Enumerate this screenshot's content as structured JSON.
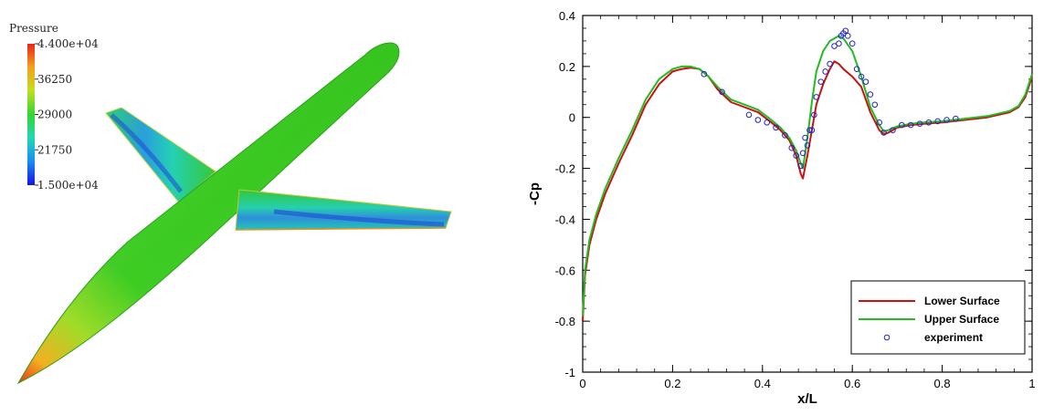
{
  "rendering": {
    "colorbar": {
      "title": "Pressure",
      "ticks": [
        "4.400e+04",
        "36250",
        "29000",
        "21750",
        "1.500e+04"
      ],
      "min": 15000,
      "max": 44000,
      "colors": [
        "#e8251a",
        "#f4a21c",
        "#bfe020",
        "#35d530",
        "#22d6b8",
        "#1a8cf0",
        "#1414e6"
      ]
    },
    "model_color": "#35c01c"
  },
  "chart_data": {
    "type": "line",
    "xlabel": "x/L",
    "ylabel": "-Cp",
    "xlim": [
      0,
      1
    ],
    "ylim": [
      -1,
      0.4
    ],
    "xticks": [
      0,
      0.2,
      0.4,
      0.6,
      0.8,
      1
    ],
    "xtick_labels": [
      "0",
      "0.2",
      "0.4",
      "0.6",
      "0.8",
      "1"
    ],
    "yticks": [
      -1,
      -0.8,
      -0.6,
      -0.4,
      -0.2,
      0,
      0.2,
      0.4
    ],
    "ytick_labels": [
      "-1",
      "-0.8",
      "-0.6",
      "-0.4",
      "-0.2",
      "0",
      "0.2",
      "0.4"
    ],
    "grid": false,
    "legend_position": "bottom-right",
    "series": [
      {
        "name": "Lower Surface",
        "color": "#cc1111",
        "style": "line",
        "x": [
          0,
          0.005,
          0.015,
          0.03,
          0.05,
          0.08,
          0.11,
          0.14,
          0.17,
          0.2,
          0.22,
          0.24,
          0.26,
          0.28,
          0.3,
          0.33,
          0.36,
          0.39,
          0.42,
          0.44,
          0.46,
          0.475,
          0.485,
          0.49,
          0.5,
          0.51,
          0.52,
          0.535,
          0.55,
          0.56,
          0.57,
          0.58,
          0.6,
          0.62,
          0.64,
          0.66,
          0.67,
          0.68,
          0.7,
          0.73,
          0.76,
          0.8,
          0.85,
          0.9,
          0.95,
          0.97,
          0.985,
          1.0
        ],
        "y": [
          -0.8,
          -0.62,
          -0.5,
          -0.4,
          -0.3,
          -0.18,
          -0.07,
          0.05,
          0.13,
          0.18,
          0.19,
          0.195,
          0.19,
          0.16,
          0.11,
          0.06,
          0.04,
          0.02,
          -0.02,
          -0.05,
          -0.09,
          -0.15,
          -0.22,
          -0.24,
          -0.15,
          -0.05,
          0.05,
          0.13,
          0.19,
          0.22,
          0.21,
          0.19,
          0.16,
          0.12,
          0.02,
          -0.05,
          -0.065,
          -0.06,
          -0.04,
          -0.03,
          -0.025,
          -0.02,
          -0.01,
          0.0,
          0.02,
          0.04,
          0.08,
          0.16
        ]
      },
      {
        "name": "Upper Surface",
        "color": "#22bb22",
        "style": "line",
        "x": [
          0,
          0.005,
          0.015,
          0.03,
          0.05,
          0.08,
          0.11,
          0.14,
          0.17,
          0.2,
          0.22,
          0.24,
          0.26,
          0.28,
          0.3,
          0.33,
          0.36,
          0.39,
          0.42,
          0.44,
          0.46,
          0.475,
          0.485,
          0.49,
          0.5,
          0.51,
          0.52,
          0.535,
          0.55,
          0.56,
          0.57,
          0.58,
          0.6,
          0.62,
          0.64,
          0.66,
          0.67,
          0.68,
          0.7,
          0.73,
          0.76,
          0.8,
          0.85,
          0.9,
          0.95,
          0.97,
          0.985,
          1.0
        ],
        "y": [
          -0.78,
          -0.6,
          -0.48,
          -0.38,
          -0.28,
          -0.16,
          -0.05,
          0.07,
          0.15,
          0.19,
          0.2,
          0.2,
          0.19,
          0.16,
          0.12,
          0.07,
          0.05,
          0.03,
          -0.01,
          -0.04,
          -0.08,
          -0.13,
          -0.18,
          -0.2,
          -0.08,
          0.06,
          0.18,
          0.26,
          0.3,
          0.31,
          0.32,
          0.31,
          0.26,
          0.16,
          0.04,
          -0.03,
          -0.055,
          -0.05,
          -0.035,
          -0.025,
          -0.02,
          -0.015,
          -0.005,
          0.005,
          0.025,
          0.045,
          0.09,
          0.17
        ]
      },
      {
        "name": "experiment",
        "color": "#2222cc",
        "style": "markers",
        "x": [
          0.27,
          0.31,
          0.37,
          0.39,
          0.41,
          0.43,
          0.45,
          0.465,
          0.475,
          0.485,
          0.49,
          0.495,
          0.5,
          0.505,
          0.51,
          0.515,
          0.52,
          0.53,
          0.54,
          0.55,
          0.56,
          0.57,
          0.575,
          0.58,
          0.585,
          0.59,
          0.6,
          0.61,
          0.62,
          0.63,
          0.64,
          0.65,
          0.66,
          0.67,
          0.69,
          0.71,
          0.73,
          0.75,
          0.77,
          0.79,
          0.81,
          0.83
        ],
        "y": [
          0.17,
          0.1,
          0.01,
          -0.01,
          -0.02,
          -0.04,
          -0.07,
          -0.12,
          -0.15,
          -0.19,
          -0.14,
          -0.08,
          -0.11,
          -0.05,
          -0.05,
          0.01,
          0.08,
          0.14,
          0.18,
          0.21,
          0.28,
          0.29,
          0.32,
          0.33,
          0.34,
          0.32,
          0.29,
          0.19,
          0.16,
          0.14,
          0.09,
          0.05,
          -0.02,
          -0.06,
          -0.05,
          -0.03,
          -0.03,
          -0.025,
          -0.02,
          -0.015,
          -0.01,
          -0.005
        ]
      }
    ]
  }
}
